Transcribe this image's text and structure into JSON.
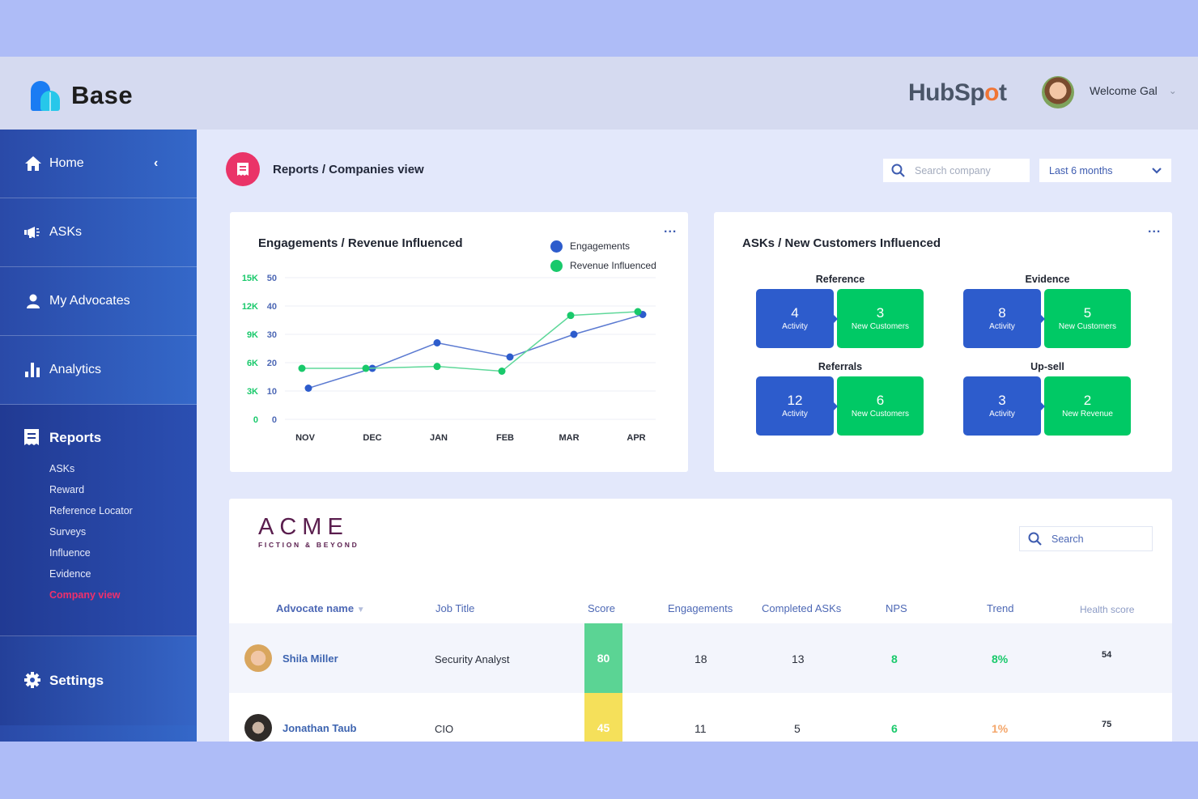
{
  "header": {
    "brand": "Base",
    "partner_logo_pre": "HubSp",
    "partner_logo_o": "o",
    "partner_logo_post": "t",
    "welcome": "Welcome Gal"
  },
  "sidebar": {
    "items": [
      {
        "label": "Home"
      },
      {
        "label": "ASKs"
      },
      {
        "label": "My Advocates"
      },
      {
        "label": "Analytics"
      }
    ],
    "reports": {
      "label": "Reports",
      "sub_items": [
        {
          "label": "ASKs"
        },
        {
          "label": "Reward"
        },
        {
          "label": "Reference Locator"
        },
        {
          "label": "Surveys"
        },
        {
          "label": "Influence"
        },
        {
          "label": "Evidence"
        },
        {
          "label": "Company view",
          "active": true
        }
      ]
    },
    "settings": {
      "label": "Settings"
    }
  },
  "page": {
    "title": "Reports / Companies view",
    "search_placeholder": "Search company",
    "range": "Last 6 months"
  },
  "engagement_card": {
    "title": "Engagements / Revenue Influenced",
    "more": "...",
    "legend": [
      "Engagements",
      "Revenue Influenced"
    ],
    "y_left": [
      "15K",
      "12K",
      "9K",
      "6K",
      "3K",
      "0"
    ],
    "y_right": [
      "50",
      "40",
      "30",
      "20",
      "10",
      "0"
    ],
    "x": [
      "NOV",
      "DEC",
      "JAN",
      "FEB",
      "MAR",
      "APR"
    ]
  },
  "chart_data": {
    "type": "line",
    "title": "Engagements / Revenue Influenced",
    "categories": [
      "NOV",
      "DEC",
      "JAN",
      "FEB",
      "MAR",
      "APR"
    ],
    "series": [
      {
        "name": "Engagements",
        "axis": "right",
        "color": "#2d5ccc",
        "values": [
          11,
          18,
          27,
          22,
          30,
          37
        ]
      },
      {
        "name": "Revenue Influenced",
        "axis": "left",
        "color": "#19c96b",
        "values": [
          5400,
          5400,
          5600,
          5100,
          11000,
          11400
        ]
      }
    ],
    "y_left_range": [
      0,
      15000
    ],
    "y_right_range": [
      0,
      50
    ],
    "grid": true,
    "legend_position": "top-right"
  },
  "asks_card": {
    "title": "ASKs / New Customers Influenced",
    "more": "...",
    "groups": [
      {
        "label": "Reference",
        "activity": "4",
        "activity_label": "Activity",
        "result": "3",
        "result_label": "New Customers"
      },
      {
        "label": "Evidence",
        "activity": "8",
        "activity_label": "Activity",
        "result": "5",
        "result_label": "New Customers"
      },
      {
        "label": "Referrals",
        "activity": "12",
        "activity_label": "Activity",
        "result": "6",
        "result_label": "New Customers"
      },
      {
        "label": "Up-sell",
        "activity": "3",
        "activity_label": "Activity",
        "result": "2",
        "result_label": "New Revenue"
      }
    ]
  },
  "company": {
    "logo_main": "ACME",
    "logo_sub": "FICTION & BEYOND",
    "search_placeholder": "Search",
    "columns": [
      "Advocate name",
      "Job Title",
      "Score",
      "Engagements",
      "Completed ASKs",
      "NPS",
      "Trend",
      "Health score"
    ],
    "rows": [
      {
        "name": "Shila Miller",
        "title": "Security Analyst",
        "score": "80",
        "engagements": "18",
        "completed": "13",
        "nps": "8",
        "trend": "8%",
        "health": "54"
      },
      {
        "name": "Jonathan Taub",
        "title": "CIO",
        "score": "45",
        "engagements": "11",
        "completed": "5",
        "nps": "6",
        "trend": "1%",
        "health": "75"
      }
    ]
  },
  "colors": {
    "primary_blue": "#2d5ccc",
    "green": "#00c965",
    "accent_pink": "#ea3468",
    "score_green": "#5bd494",
    "score_yellow": "#f5e05a",
    "trend_orange": "#f4a66a"
  }
}
